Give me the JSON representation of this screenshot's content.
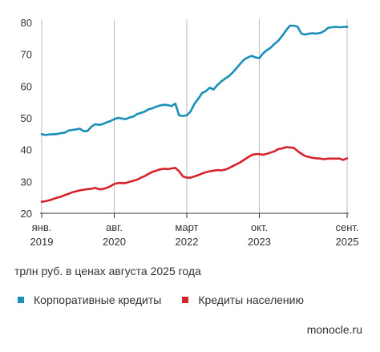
{
  "chart_data": {
    "type": "line",
    "y_ticks": [
      20,
      30,
      40,
      50,
      60,
      70,
      80
    ],
    "ylim": [
      20,
      80
    ],
    "grid": "vertical lines at x-tick dates",
    "x_ticks": [
      {
        "month": "янв.",
        "year": "2019",
        "date": "2019-01"
      },
      {
        "month": "авг.",
        "year": "2020",
        "date": "2020-08"
      },
      {
        "month": "март",
        "year": "2022",
        "date": "2022-03"
      },
      {
        "month": "окт.",
        "year": "2023",
        "date": "2023-10"
      },
      {
        "month": "сент.",
        "year": "2025",
        "date": "2025-09"
      }
    ],
    "x": [
      "2019-01",
      "2019-02",
      "2019-03",
      "2019-04",
      "2019-05",
      "2019-06",
      "2019-07",
      "2019-08",
      "2019-09",
      "2019-10",
      "2019-11",
      "2019-12",
      "2020-01",
      "2020-02",
      "2020-03",
      "2020-04",
      "2020-05",
      "2020-06",
      "2020-07",
      "2020-08",
      "2020-09",
      "2020-10",
      "2020-11",
      "2020-12",
      "2021-01",
      "2021-02",
      "2021-03",
      "2021-04",
      "2021-05",
      "2021-06",
      "2021-07",
      "2021-08",
      "2021-09",
      "2021-10",
      "2021-11",
      "2021-12",
      "2022-01",
      "2022-02",
      "2022-03",
      "2022-04",
      "2022-05",
      "2022-06",
      "2022-07",
      "2022-08",
      "2022-09",
      "2022-10",
      "2022-11",
      "2022-12",
      "2023-01",
      "2023-02",
      "2023-03",
      "2023-04",
      "2023-05",
      "2023-06",
      "2023-07",
      "2023-08",
      "2023-09",
      "2023-10",
      "2023-11",
      "2023-12",
      "2024-01",
      "2024-02",
      "2024-03",
      "2024-04",
      "2024-05",
      "2024-06",
      "2024-07",
      "2024-08",
      "2024-09",
      "2024-10",
      "2024-11",
      "2024-12",
      "2025-01",
      "2025-02",
      "2025-03",
      "2025-04",
      "2025-05",
      "2025-06",
      "2025-07",
      "2025-08",
      "2025-09"
    ],
    "series": [
      {
        "name": "Корпоративные кредиты",
        "color": "#1a8fb8",
        "values": [
          44.9,
          44.6,
          44.8,
          44.8,
          44.9,
          45.2,
          45.3,
          46.0,
          46.2,
          46.4,
          46.6,
          45.8,
          45.9,
          47.2,
          48.0,
          47.8,
          48.0,
          48.6,
          49.0,
          49.6,
          50.0,
          49.8,
          49.6,
          50.1,
          50.4,
          51.2,
          51.6,
          52.0,
          52.7,
          53.0,
          53.5,
          53.9,
          54.1,
          54.0,
          53.7,
          54.5,
          50.8,
          50.6,
          50.8,
          52.0,
          54.4,
          56.0,
          57.8,
          58.4,
          59.5,
          58.9,
          60.3,
          61.4,
          62.3,
          63.1,
          64.2,
          65.6,
          67.0,
          68.3,
          69.0,
          69.5,
          69.0,
          68.8,
          70.3,
          71.3,
          72.1,
          73.3,
          74.3,
          75.8,
          77.5,
          79.0,
          79.0,
          78.7,
          76.5,
          76.2,
          76.5,
          76.6,
          76.5,
          76.7,
          77.3,
          78.3,
          78.5,
          78.6,
          78.5,
          78.6,
          78.6
        ]
      },
      {
        "name": "Кредиты населению",
        "color": "#d7222b",
        "values": [
          23.6,
          23.8,
          24.1,
          24.5,
          24.9,
          25.2,
          25.7,
          26.1,
          26.6,
          26.9,
          27.2,
          27.4,
          27.6,
          27.7,
          28.0,
          27.6,
          27.6,
          28.0,
          28.5,
          29.2,
          29.5,
          29.5,
          29.5,
          29.9,
          30.2,
          30.6,
          31.2,
          31.7,
          32.4,
          33.0,
          33.4,
          33.8,
          34.0,
          33.9,
          34.1,
          34.3,
          33.2,
          31.6,
          31.2,
          31.2,
          31.6,
          32.0,
          32.5,
          32.9,
          33.2,
          33.4,
          33.6,
          33.5,
          33.7,
          34.2,
          34.8,
          35.4,
          36.0,
          36.8,
          37.6,
          38.3,
          38.6,
          38.6,
          38.4,
          38.7,
          39.1,
          39.5,
          40.2,
          40.4,
          40.8,
          40.7,
          40.6,
          39.6,
          38.7,
          38.0,
          37.7,
          37.4,
          37.3,
          37.2,
          37.0,
          37.2,
          37.2,
          37.2,
          37.2,
          36.8,
          37.3
        ]
      }
    ]
  },
  "unit_note": "трлн руб. в ценах августа 2025 года",
  "legend": [
    {
      "label": "Корпоративные кредиты",
      "color": "#1a8fb8"
    },
    {
      "label": "Кредиты населению",
      "color": "#d7222b"
    }
  ],
  "source": "monocle.ru"
}
